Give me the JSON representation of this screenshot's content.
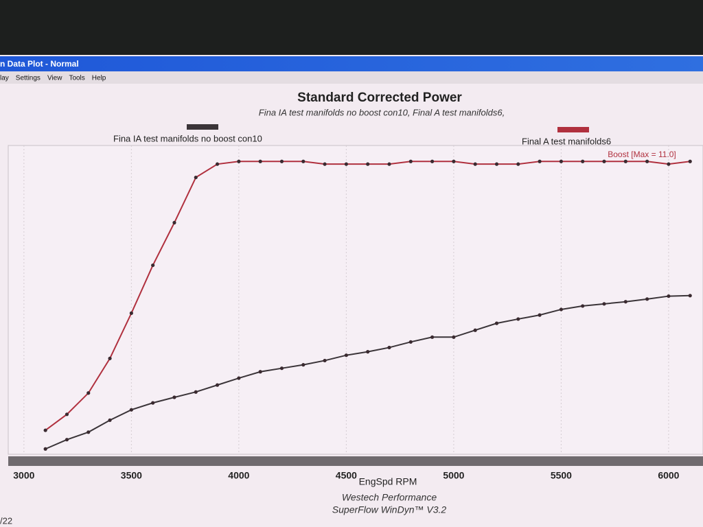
{
  "window": {
    "title": "n Data Plot - Normal",
    "menu": [
      "lay",
      "Settings",
      "View",
      "Tools",
      "Help"
    ],
    "status": "/22"
  },
  "chart_data": {
    "type": "line",
    "title": "Standard Corrected Power",
    "subtitle": "Fina IA test manifolds no boost con10, Final A test manifolds6,",
    "xlabel": "EngSpd RPM",
    "footer": [
      "Westech Performance",
      "SuperFlow WinDyn™ V3.2"
    ],
    "annotation": "Boost  [Max = 11.0]",
    "x": [
      3100,
      3200,
      3300,
      3400,
      3500,
      3600,
      3700,
      3800,
      3900,
      4000,
      4100,
      4200,
      4300,
      4400,
      4500,
      4600,
      4700,
      4800,
      4900,
      5000,
      5100,
      5200,
      5300,
      5400,
      5500,
      5600,
      5700,
      5800,
      5900,
      6000,
      6100
    ],
    "series": [
      {
        "name": "Fina IA test manifolds no boost con10",
        "color": "#3a3438",
        "values": [
          0.2,
          0.55,
          0.83,
          1.28,
          1.67,
          1.93,
          2.14,
          2.34,
          2.6,
          2.86,
          3.1,
          3.23,
          3.36,
          3.52,
          3.72,
          3.85,
          4.01,
          4.22,
          4.4,
          4.4,
          4.66,
          4.92,
          5.08,
          5.23,
          5.44,
          5.57,
          5.65,
          5.73,
          5.83,
          5.94,
          5.96
        ]
      },
      {
        "name": "Final A test manifolds6",
        "color": "#b0303e",
        "values": [
          0.9,
          1.5,
          2.3,
          3.6,
          5.3,
          7.1,
          8.7,
          10.4,
          10.9,
          11.0,
          11.0,
          11.0,
          11.0,
          10.9,
          10.9,
          10.9,
          10.9,
          11.0,
          11.0,
          11.0,
          10.9,
          10.9,
          10.9,
          11.0,
          11.0,
          11.0,
          11.0,
          11.0,
          11.0,
          10.9,
          11.0
        ]
      }
    ],
    "xlim": [
      2927,
      6160
    ],
    "ylim": [
      0,
      11.6
    ],
    "xticks": [
      3000,
      3500,
      4000,
      4500,
      5000,
      5500,
      6000
    ],
    "grid": true
  }
}
